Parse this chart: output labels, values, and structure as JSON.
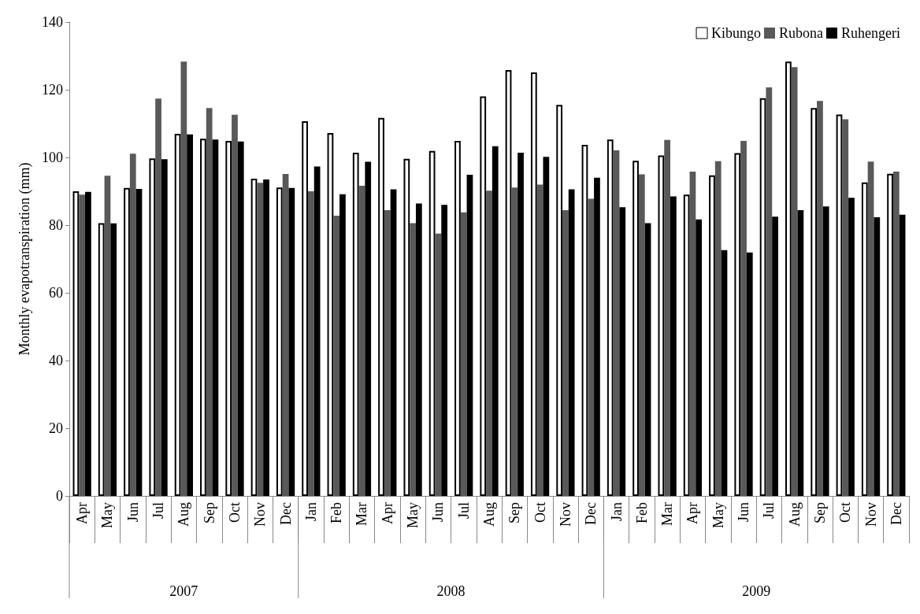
{
  "chart_data": {
    "type": "bar",
    "ylabel": "Monthly evapotranspiration (mm)",
    "categories": [
      "Apr",
      "May",
      "Jun",
      "Jul",
      "Aug",
      "Sep",
      "Oct",
      "Nov",
      "Dec",
      "Jan",
      "Feb",
      "Mar",
      "Apr",
      "May",
      "Jun",
      "Jul",
      "Aug",
      "Sep",
      "Oct",
      "Nov",
      "Dec",
      "Jan",
      "Feb",
      "Mar",
      "Apr",
      "May",
      "Jun",
      "Jul",
      "Aug",
      "Sep",
      "Oct",
      "Nov",
      "Dec"
    ],
    "series": [
      {
        "name": "Kibungo",
        "color": "#ffffff",
        "values": [
          90,
          80.6,
          91,
          99.7,
          107,
          105.5,
          104.9,
          93.7,
          91.1,
          110.7,
          107.2,
          101.4,
          111.7,
          99.6,
          101.9,
          104.9,
          118,
          125.8,
          125.1,
          115.5,
          103.7,
          105.3,
          99,
          100.6,
          89,
          94.7,
          101.3,
          117.5,
          128.3,
          114.6,
          112.7,
          92.6,
          95.2
        ]
      },
      {
        "name": "Rubona",
        "color": "#595959",
        "values": [
          89,
          94.6,
          101.1,
          117.4,
          128.3,
          114.6,
          112.6,
          92.5,
          95.1,
          90,
          82.8,
          91.6,
          84.4,
          80.6,
          77.5,
          83.8,
          90.2,
          91.1,
          92,
          84.4,
          87.8,
          102.1,
          95,
          105.2,
          95.8,
          98.9,
          104.9,
          120.7,
          126.7,
          116.7,
          111.3,
          98.8,
          95.8
        ]
      },
      {
        "name": "Ruhengeri",
        "color": "#000000",
        "values": [
          89.8,
          80.5,
          90.7,
          99.5,
          106.8,
          105.3,
          104.7,
          93.5,
          91,
          97.3,
          89.1,
          98.7,
          90.6,
          86.4,
          86,
          94.9,
          103.3,
          101.4,
          100.2,
          90.6,
          94,
          85.3,
          80.6,
          88.5,
          81.7,
          72.6,
          71.9,
          82.5,
          84.4,
          85.5,
          88.1,
          82.3,
          83.1
        ]
      }
    ],
    "ylim": [
      0,
      140
    ],
    "yticks": [
      0,
      20,
      40,
      60,
      80,
      100,
      120,
      140
    ],
    "grid": false,
    "legend": "top right",
    "annotations": [
      "2007",
      "2008",
      "2009"
    ]
  }
}
